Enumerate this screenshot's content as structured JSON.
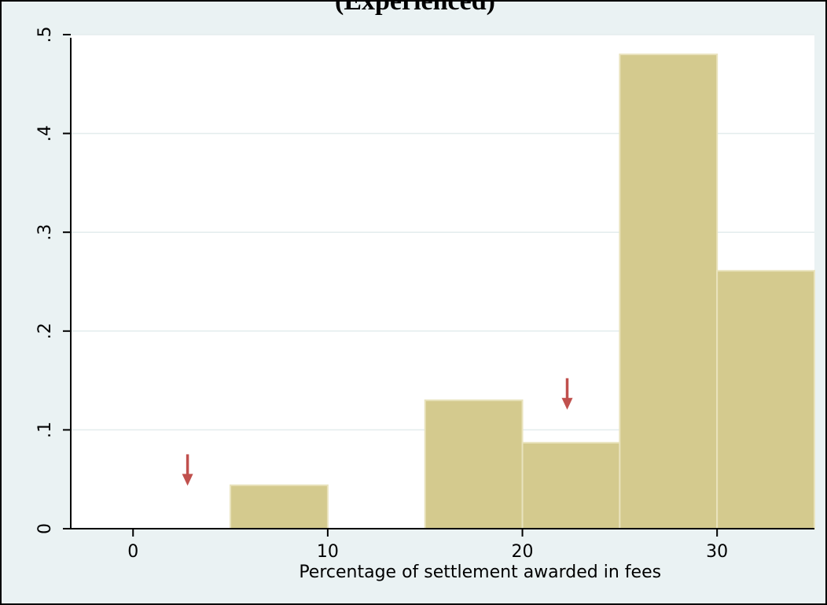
{
  "chart_data": {
    "type": "bar",
    "title": "(Experienced)",
    "xlabel": "Percentage of settlement awarded in fees",
    "ylabel": "",
    "bins": [
      {
        "x0": 5,
        "x1": 10,
        "value": 0.044
      },
      {
        "x0": 15,
        "x1": 20,
        "value": 0.13
      },
      {
        "x0": 20,
        "x1": 25,
        "value": 0.087
      },
      {
        "x0": 25,
        "x1": 30,
        "value": 0.48
      },
      {
        "x0": 30,
        "x1": 35,
        "value": 0.261
      }
    ],
    "xlim": [
      -3.2,
      35
    ],
    "ylim": [
      0,
      0.5
    ],
    "x_ticks": [
      {
        "value": 0,
        "label": "0"
      },
      {
        "value": 10,
        "label": "10"
      },
      {
        "value": 20,
        "label": "20"
      },
      {
        "value": 30,
        "label": "30"
      }
    ],
    "y_ticks": [
      {
        "value": 0,
        "label": "0"
      },
      {
        "value": 0.1,
        "label": ".1"
      },
      {
        "value": 0.2,
        "label": ".2"
      },
      {
        "value": 0.3,
        "label": ".3"
      },
      {
        "value": 0.4,
        "label": ".4"
      },
      {
        "value": 0.5,
        "label": ".5"
      }
    ],
    "annotations": [
      {
        "type": "arrow",
        "x": 2.8,
        "y": 0.053
      },
      {
        "type": "arrow",
        "x": 22.3,
        "y": 0.13
      }
    ],
    "grid": true,
    "colors": {
      "bar_fill": "#d4ca8e",
      "bar_stroke": "#e9e3bd",
      "arrow": "#c0504d",
      "plot_bg": "#ffffff",
      "outer_bg": "#eaf2f3",
      "grid": "#e3eced"
    }
  }
}
